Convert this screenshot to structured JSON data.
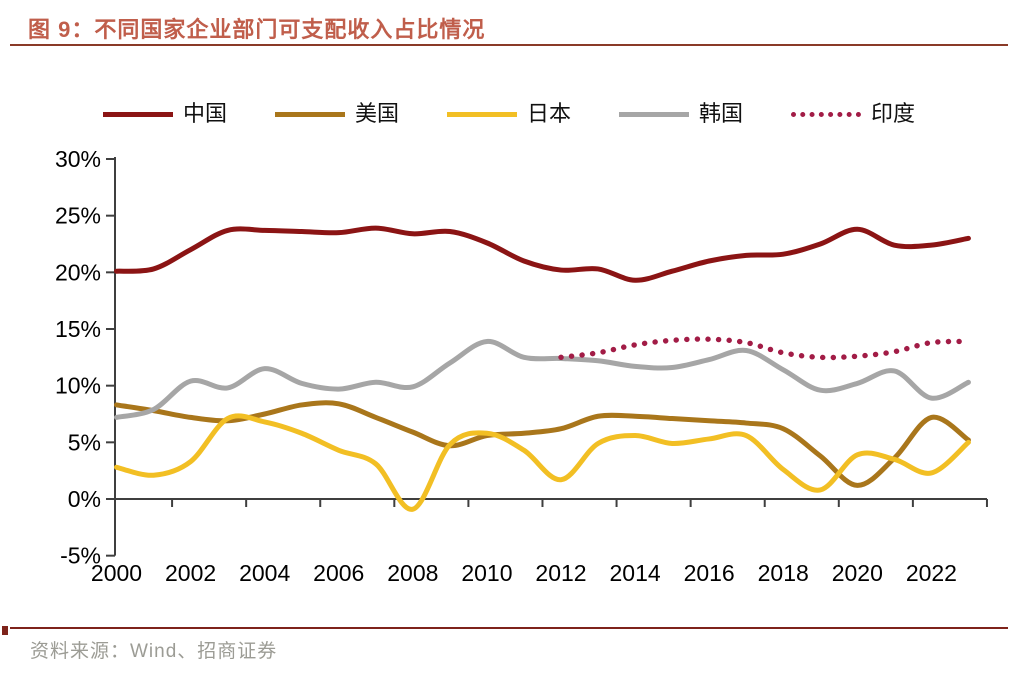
{
  "header": {
    "title": "图 9：不同国家企业部门可支配收入占比情况"
  },
  "footer": {
    "source": "资料来源：Wind、招商证券"
  },
  "colors": {
    "title_text": "#C05E4B",
    "title_rule": "#8A3A28",
    "footer_rule": "#7E231B",
    "source_text": "#9C9C95",
    "axis": "#3F3F3F",
    "tick_label": "#000000"
  },
  "chart_data": {
    "type": "line",
    "title": "不同国家企业部门可支配收入占比情况",
    "xlabel": "",
    "ylabel": "",
    "ylim": [
      -5,
      30
    ],
    "y_ticks": [
      30,
      25,
      20,
      15,
      10,
      5,
      0,
      -5
    ],
    "y_tick_suffix": "%",
    "x_tick_years": [
      2000,
      2002,
      2004,
      2006,
      2008,
      2010,
      2012,
      2014,
      2016,
      2018,
      2020,
      2022
    ],
    "years": [
      2000,
      2001,
      2002,
      2003,
      2004,
      2005,
      2006,
      2007,
      2008,
      2009,
      2010,
      2011,
      2012,
      2013,
      2014,
      2015,
      2016,
      2017,
      2018,
      2019,
      2020,
      2021,
      2022,
      2023
    ],
    "grid": false,
    "legend_position": "top",
    "series": [
      {
        "name": "中国",
        "color": "#8B1414",
        "style": "solid",
        "values": [
          20.1,
          20.3,
          22.0,
          23.7,
          23.7,
          23.6,
          23.5,
          23.9,
          23.4,
          23.6,
          22.6,
          21.0,
          20.2,
          20.3,
          19.3,
          20.1,
          21.0,
          21.5,
          21.6,
          22.5,
          23.8,
          22.4,
          22.4,
          23.0
        ]
      },
      {
        "name": "美国",
        "color": "#A9761B",
        "style": "solid",
        "values": [
          8.3,
          7.8,
          7.2,
          6.9,
          7.5,
          8.3,
          8.4,
          7.2,
          5.9,
          4.7,
          5.6,
          5.8,
          6.2,
          7.3,
          7.3,
          7.1,
          6.9,
          6.7,
          6.2,
          3.8,
          1.2,
          3.6,
          7.2,
          5.2
        ]
      },
      {
        "name": "日本",
        "color": "#F2BF24",
        "style": "solid",
        "values": [
          2.8,
          2.1,
          3.3,
          7.1,
          6.8,
          5.8,
          4.3,
          3.1,
          -0.9,
          4.8,
          5.8,
          4.3,
          1.7,
          4.9,
          5.6,
          4.9,
          5.3,
          5.6,
          2.6,
          0.8,
          3.9,
          3.5,
          2.3,
          5.0
        ]
      },
      {
        "name": "韩国",
        "color": "#A6A6A6",
        "style": "solid",
        "values": [
          7.2,
          7.9,
          10.4,
          9.8,
          11.5,
          10.2,
          9.7,
          10.3,
          9.9,
          12.0,
          13.9,
          12.5,
          12.4,
          12.2,
          11.7,
          11.6,
          12.3,
          13.1,
          11.4,
          9.6,
          10.2,
          11.3,
          8.9,
          10.3
        ]
      },
      {
        "name": "印度",
        "color": "#A21C46",
        "style": "dotted",
        "start_year": 2012,
        "values": [
          12.5,
          12.9,
          13.6,
          14.0,
          14.1,
          13.8,
          12.9,
          12.5,
          12.6,
          13.0,
          13.8,
          13.9
        ]
      }
    ]
  }
}
